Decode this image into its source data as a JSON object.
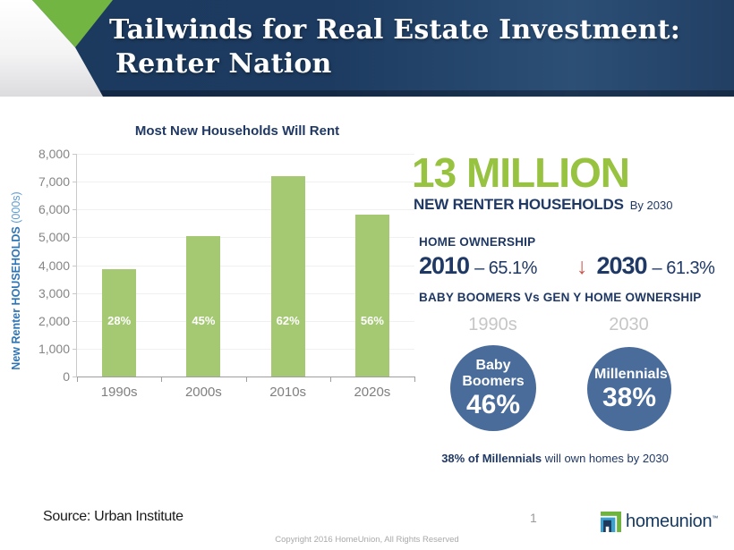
{
  "header": {
    "title_line1": "Tailwinds for Real Estate Investment:",
    "title_line2": "Renter Nation"
  },
  "chart_data": {
    "type": "bar",
    "title": "Most New Households Will Rent",
    "categories": [
      "1990s",
      "2000s",
      "2010s",
      "2020s"
    ],
    "values": [
      3850,
      5050,
      7200,
      5800
    ],
    "bar_labels": [
      "28%",
      "45%",
      "62%",
      "56%"
    ],
    "ylabel_bold": "New Renter HOUSEHOLDS",
    "ylabel_suffix": "(000s)",
    "xlabel": "",
    "ylim": [
      0,
      8000
    ],
    "ytick_step": 1000,
    "grid": true,
    "legend_position": "none",
    "bar_color": "#a5c873",
    "bar_label_color": "#ffffff"
  },
  "stats": {
    "big_number": "13 MILLION",
    "big_number_caption_bold": "NEW RENTER HOUSEHOLDS",
    "big_number_caption_suffix": "By 2030",
    "home_ownership_heading": "HOME OWNERSHIP",
    "ownership_2010": {
      "year": "2010",
      "value": "– 65.1%"
    },
    "arrow_glyph": "↓",
    "ownership_2030": {
      "year": "2030",
      "value": "– 61.3%"
    },
    "comparison_heading": "BABY BOOMERS Vs GEN Y HOME OWNERSHIP",
    "comparison": {
      "left_period": "1990s",
      "right_period": "2030",
      "left_circle_label": "Baby Boomers",
      "left_circle_value": "46%",
      "right_circle_label": "Millennials",
      "right_circle_value": "38%"
    },
    "footnote_bold": "38% of Millennials",
    "footnote_rest": " will own homes by 2030"
  },
  "footer": {
    "source": "Source: Urban Institute",
    "page_number": "1",
    "brand_name": "homeunion",
    "trademark": "™",
    "copyright": "Copyright 2016 HomeUnion, All Rights Reserved"
  },
  "colors": {
    "header_navy": "#1d3b5e",
    "chevron_green": "#72b543",
    "accent_green": "#97c341",
    "bar_green": "#a5c873",
    "navy_text": "#1f3864",
    "axis_blue": "#2e75b6",
    "circle_blue": "#4a6c9b",
    "arrow_red": "#cc544b",
    "period_gray": "#c6c6c6"
  }
}
